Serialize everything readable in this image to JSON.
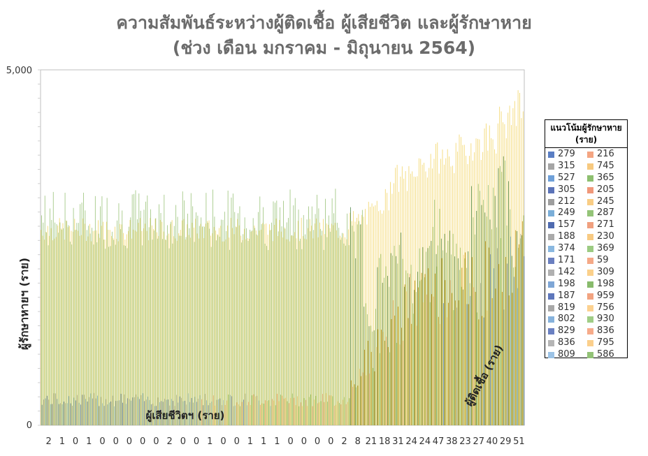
{
  "chart_data": {
    "type": "bar",
    "title_line1": "ความสัมพันธ์ระหว่างผู้ติดเชื้อ ผู้เสียชีวิต และผู้รักษาหาย",
    "title_line2": "(ช่วง เดือน มกราคม - มิถุนายน 2564)",
    "ylabel": "ผู้รักษาหายฯ (ราย)",
    "ylim": [
      0,
      5000
    ],
    "y_ticks": [
      "0",
      "5,000"
    ],
    "x_tick_labels": [
      "2",
      "1",
      "0",
      "1",
      "0",
      "0",
      "0",
      "0",
      "0",
      "2",
      "0",
      "0",
      "1",
      "0",
      "0",
      "1",
      "1",
      "1",
      "0",
      "0",
      "0",
      "0",
      "2",
      "8",
      "21",
      "18",
      "31",
      "24",
      "24",
      "47",
      "38",
      "23",
      "27",
      "40",
      "29",
      "51"
    ],
    "series_annotations": {
      "deaths": "ผู้เสียชีวิตฯ (ราย)",
      "infections": "ผู้ติดเชื้อ (ราย)"
    },
    "legend": {
      "title": "แนวโน้มผู้รักษาหาย (ราย)",
      "col1": [
        "279",
        "315",
        "527",
        "305",
        "212",
        "249",
        "157",
        "188",
        "374",
        "171",
        "142",
        "198",
        "187",
        "819",
        "802",
        "829",
        "836",
        "809"
      ],
      "col2": [
        "216",
        "745",
        "365",
        "205",
        "245",
        "287",
        "271",
        "230",
        "369",
        "59",
        "309",
        "198",
        "959",
        "756",
        "930",
        "836",
        "795",
        "586"
      ]
    },
    "profile": {
      "recovered_level": [
        2780,
        2780,
        2780,
        2780,
        2780,
        2780,
        2780,
        2780,
        2780,
        2780,
        2780,
        2780,
        2780,
        2780,
        2780,
        2780,
        2780,
        2780,
        2780,
        2780,
        2780,
        2780,
        2780,
        2900,
        3000,
        3200,
        3500,
        3500,
        3700,
        3800,
        3800,
        3900,
        4000,
        4100,
        4300,
        4500
      ],
      "infections_level": [
        2900,
        2900,
        2900,
        2900,
        2900,
        2900,
        2900,
        2900,
        2900,
        2900,
        2900,
        2900,
        2900,
        2900,
        2900,
        2900,
        2900,
        2900,
        2900,
        2900,
        2900,
        2900,
        2900,
        2700,
        1500,
        2200,
        2600,
        2000,
        2300,
        2800,
        2600,
        2200,
        3000,
        3000,
        3300,
        2600
      ],
      "deaths_level": [
        380,
        380,
        380,
        380,
        380,
        380,
        380,
        380,
        380,
        380,
        380,
        380,
        380,
        380,
        380,
        380,
        380,
        380,
        380,
        380,
        380,
        380,
        380,
        700,
        1000,
        1300,
        1500,
        1800,
        1900,
        2000,
        2100,
        2100,
        2000,
        2200,
        2300,
        2400
      ]
    },
    "colors": {
      "title": "#6b6b6b",
      "recovered": "#f2d35e",
      "infections": "#8fbc6a",
      "deaths": "#6b8fd0",
      "accent_brown": "#b8860b",
      "dark_green": "#3e7d3a",
      "legend_palette": [
        "#5a7ec4",
        "#a5a5a5",
        "#6fa0d8",
        "#5b73b8",
        "#9e9e9e",
        "#7aaed8",
        "#4f6bb0",
        "#aaaaaa",
        "#8ab8e0",
        "#6a7fc0",
        "#b0b0b0",
        "#7ea6d6",
        "#5e77bc",
        "#a8a8a8",
        "#86b2dc",
        "#6a80c2",
        "#b5b5b5",
        "#9cc3e6"
      ],
      "legend_palette2": [
        "#f4a582",
        "#f7c97f",
        "#8dbf6f",
        "#f0987a",
        "#f9cd85",
        "#94c478",
        "#f0a07f",
        "#f8ca82",
        "#9ccb82",
        "#f5a987",
        "#fbd08b",
        "#88bb6c",
        "#f2a380",
        "#fcd190",
        "#a0cd86",
        "#f6ab8a",
        "#fbcf8c",
        "#92c276"
      ]
    }
  }
}
